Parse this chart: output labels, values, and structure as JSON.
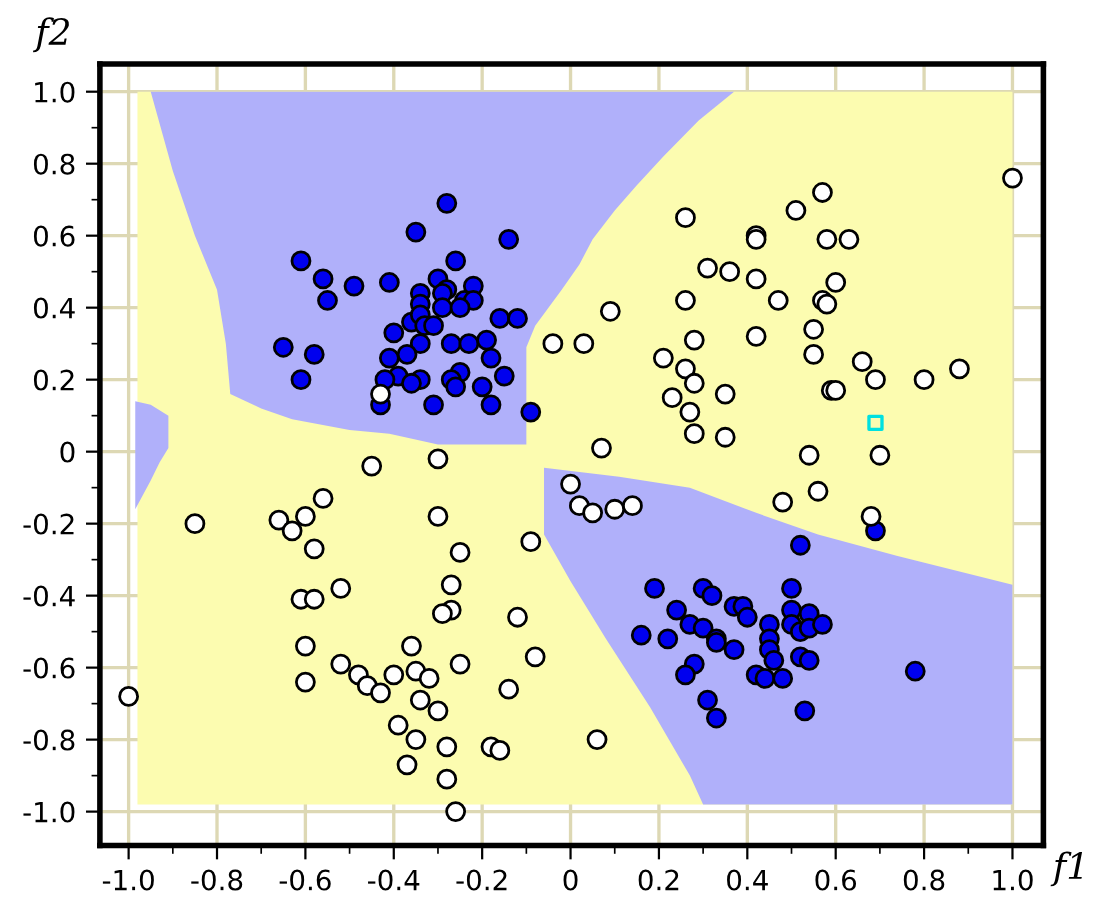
{
  "chart_data": {
    "type": "scatter",
    "xlabel": "f1",
    "ylabel": "f2",
    "xlim": [
      -1.065,
      1.07
    ],
    "ylim": [
      -1.094,
      1.077
    ],
    "xticks": [
      {
        "value": -1.0,
        "label": "-1.0"
      },
      {
        "value": -0.8,
        "label": "-0.8"
      },
      {
        "value": -0.6,
        "label": "-0.6"
      },
      {
        "value": -0.4,
        "label": "-0.4"
      },
      {
        "value": -0.2,
        "label": "-0.2"
      },
      0,
      0.2,
      0.4,
      0.6,
      0.8,
      {
        "value": 1.0,
        "label": "1.0"
      }
    ],
    "yticks": [
      {
        "value": -1.0,
        "label": "-1.0"
      },
      {
        "value": -0.8,
        "label": "-0.8"
      },
      {
        "value": -0.6,
        "label": "-0.6"
      },
      {
        "value": -0.4,
        "label": "-0.4"
      },
      {
        "value": -0.2,
        "label": "-0.2"
      },
      0,
      0.2,
      0.4,
      0.6,
      0.8,
      {
        "value": 1.0,
        "label": "1.0"
      }
    ],
    "grid": true,
    "series": [
      {
        "marker": "circle",
        "color": "#0000ee",
        "x": [
          -0.28,
          -0.35,
          -0.14,
          -0.61,
          -0.26,
          -0.56,
          -0.55,
          -0.49,
          -0.41,
          -0.3,
          -0.28,
          -0.22,
          -0.34,
          -0.29,
          -0.24,
          -0.22,
          -0.34,
          -0.29,
          -0.25,
          -0.16,
          -0.12,
          -0.36,
          -0.34,
          -0.33,
          -0.31,
          -0.4,
          -0.34,
          -0.27,
          -0.23,
          -0.19,
          -0.65,
          -0.58,
          -0.37,
          -0.41,
          -0.18,
          -0.39,
          -0.42,
          -0.34,
          -0.36,
          -0.25,
          -0.27,
          -0.26,
          -0.15,
          -0.61,
          -0.2,
          -0.43,
          -0.31,
          -0.18,
          -0.09,
          0.69,
          0.52,
          0.19,
          0.3,
          0.32,
          0.5,
          0.24,
          0.37,
          0.39,
          0.4,
          0.5,
          0.54,
          0.45,
          0.27,
          0.3,
          0.16,
          0.22,
          0.33,
          0.33,
          0.37,
          0.5,
          0.52,
          0.54,
          0.57,
          0.45,
          0.45,
          0.46,
          0.52,
          0.54,
          0.28,
          0.26,
          0.42,
          0.44,
          0.48,
          0.78,
          0.31,
          0.33,
          0.53
        ],
        "values": [
          0.69,
          0.61,
          0.59,
          0.53,
          0.53,
          0.48,
          0.42,
          0.46,
          0.47,
          0.48,
          0.45,
          0.46,
          0.44,
          0.44,
          0.42,
          0.42,
          0.41,
          0.4,
          0.4,
          0.37,
          0.37,
          0.36,
          0.38,
          0.35,
          0.35,
          0.33,
          0.3,
          0.3,
          0.3,
          0.31,
          0.29,
          0.27,
          0.27,
          0.26,
          0.26,
          0.21,
          0.2,
          0.2,
          0.19,
          0.22,
          0.2,
          0.18,
          0.21,
          0.2,
          0.18,
          0.13,
          0.13,
          0.13,
          0.11,
          -0.22,
          -0.26,
          -0.38,
          -0.38,
          -0.4,
          -0.38,
          -0.44,
          -0.43,
          -0.43,
          -0.46,
          -0.44,
          -0.45,
          -0.48,
          -0.48,
          -0.49,
          -0.51,
          -0.52,
          -0.52,
          -0.53,
          -0.55,
          -0.48,
          -0.5,
          -0.49,
          -0.48,
          -0.52,
          -0.55,
          -0.58,
          -0.57,
          -0.58,
          -0.59,
          -0.62,
          -0.62,
          -0.63,
          -0.63,
          -0.61,
          -0.69,
          -0.74,
          -0.72
        ]
      },
      {
        "marker": "circle",
        "color": "#ffffff",
        "x": [
          -0.43,
          -0.04,
          1.0,
          0.57,
          0.51,
          0.26,
          0.42,
          0.42,
          0.58,
          0.63,
          0.31,
          0.36,
          0.42,
          0.6,
          0.09,
          0.26,
          0.47,
          0.57,
          0.58,
          0.55,
          0.03,
          0.28,
          0.42,
          0.21,
          0.26,
          0.28,
          0.35,
          0.23,
          0.27,
          0.55,
          0.66,
          0.69,
          0.8,
          0.88,
          0.59,
          0.6,
          0.28,
          0.35,
          0.07,
          0.54,
          0.7,
          0.0,
          0.02,
          0.05,
          0.1,
          0.14,
          0.48,
          0.56,
          0.68,
          0.06,
          -0.45,
          -0.3,
          -0.85,
          -0.66,
          -0.6,
          -0.56,
          -0.63,
          -0.3,
          -0.58,
          -0.25,
          -0.09,
          -0.52,
          -0.61,
          -0.58,
          -0.27,
          -0.27,
          -0.29,
          -0.12,
          -0.6,
          -0.36,
          -0.52,
          -0.25,
          -0.08,
          -0.6,
          -0.48,
          -0.46,
          -0.43,
          -0.4,
          -0.35,
          -0.32,
          -0.34,
          -0.3,
          -0.14,
          -0.39,
          -0.35,
          -0.28,
          -0.18,
          -0.16,
          -0.37,
          -0.28,
          -0.26,
          -1.0
        ],
        "values": [
          0.16,
          0.3,
          0.76,
          0.72,
          0.67,
          0.65,
          0.6,
          0.59,
          0.59,
          0.59,
          0.51,
          0.5,
          0.48,
          0.47,
          0.39,
          0.42,
          0.42,
          0.42,
          0.41,
          0.34,
          0.3,
          0.31,
          0.32,
          0.26,
          0.23,
          0.19,
          0.16,
          0.15,
          0.11,
          0.27,
          0.25,
          0.2,
          0.2,
          0.23,
          0.17,
          0.17,
          0.05,
          0.04,
          0.01,
          -0.01,
          -0.01,
          -0.09,
          -0.15,
          -0.17,
          -0.16,
          -0.15,
          -0.14,
          -0.11,
          -0.18,
          -0.8,
          -0.04,
          -0.02,
          -0.2,
          -0.19,
          -0.18,
          -0.13,
          -0.22,
          -0.18,
          -0.27,
          -0.28,
          -0.25,
          -0.38,
          -0.41,
          -0.41,
          -0.37,
          -0.44,
          -0.45,
          -0.46,
          -0.54,
          -0.54,
          -0.59,
          -0.59,
          -0.57,
          -0.64,
          -0.62,
          -0.65,
          -0.67,
          -0.62,
          -0.61,
          -0.63,
          -0.69,
          -0.72,
          -0.66,
          -0.76,
          -0.8,
          -0.82,
          -0.82,
          -0.83,
          -0.87,
          -0.91,
          -1.0,
          -0.68
        ]
      },
      {
        "marker": "square",
        "color": "#00e0e0",
        "x": [
          0.69
        ],
        "values": [
          0.08
        ]
      }
    ]
  }
}
